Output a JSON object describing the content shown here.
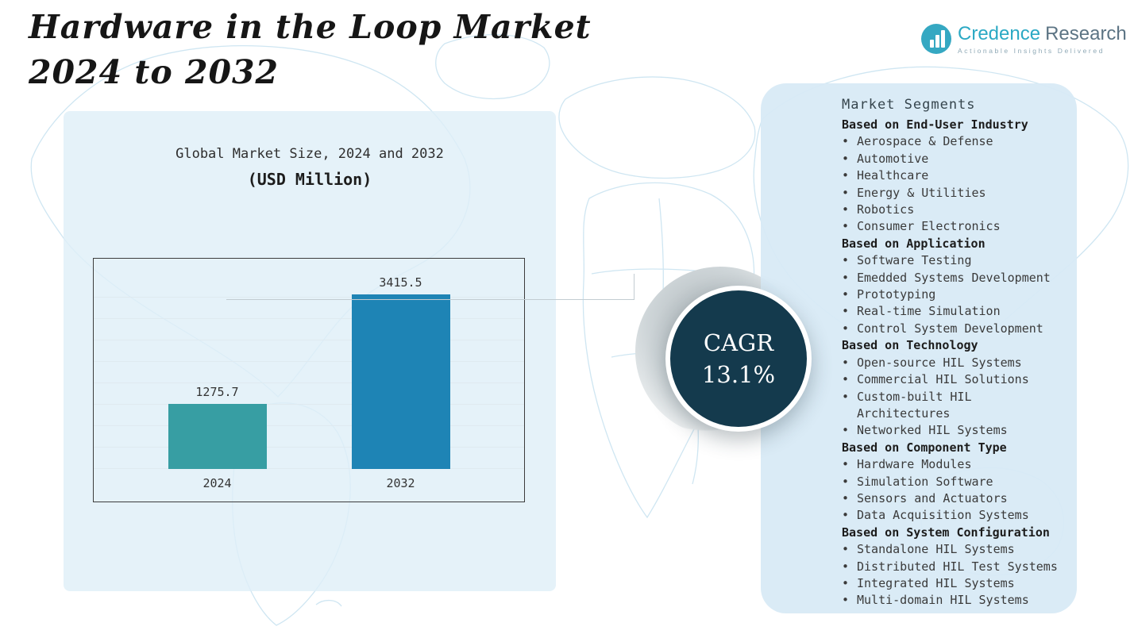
{
  "page": {
    "title_line1": "Hardware in the Loop Market",
    "title_line2": "2024 to 2032"
  },
  "logo": {
    "brand_primary": "Credence",
    "brand_secondary": "Research",
    "tagline": "Actionable Insights Delivered"
  },
  "chart_data": {
    "type": "bar",
    "title": "Global Market Size, 2024 and 2032",
    "subtitle": "(USD Million)",
    "categories": [
      "2024",
      "2032"
    ],
    "values": [
      1275.7,
      3415.5
    ],
    "value_labels": [
      "1275.7",
      "3415.5"
    ],
    "bar_colors": [
      "#379ea3",
      "#1e84b5"
    ],
    "xlabel": "",
    "ylabel": "",
    "ylim": [
      0,
      4000
    ],
    "grid": true,
    "legend": "none"
  },
  "cagr": {
    "label": "CAGR",
    "value": "13.1%"
  },
  "segments": {
    "title": "Market Segments",
    "groups": [
      {
        "heading": "Based on End-User Industry",
        "items": [
          "Aerospace & Defense",
          "Automotive",
          "Healthcare",
          "Energy & Utilities",
          "Robotics",
          "Consumer Electronics"
        ]
      },
      {
        "heading": "Based on Application",
        "items": [
          "Software Testing",
          "Emedded Systems Development",
          "Prototyping",
          "Real-time Simulation",
          "Control System Development"
        ]
      },
      {
        "heading": "Based on Technology",
        "items": [
          "Open-source HIL Systems",
          "Commercial HIL Solutions",
          "Custom-built HIL Architectures",
          "Networked HIL Systems"
        ]
      },
      {
        "heading": "Based on Component Type",
        "items": [
          "Hardware Modules",
          "Simulation Software",
          "Sensors and Actuators",
          "Data Acquisition Systems"
        ]
      },
      {
        "heading": "Based on System Configuration",
        "items": [
          "Standalone HIL Systems",
          "Distributed HIL Test Systems",
          "Integrated HIL Systems",
          "Multi-domain HIL Systems"
        ]
      }
    ]
  }
}
